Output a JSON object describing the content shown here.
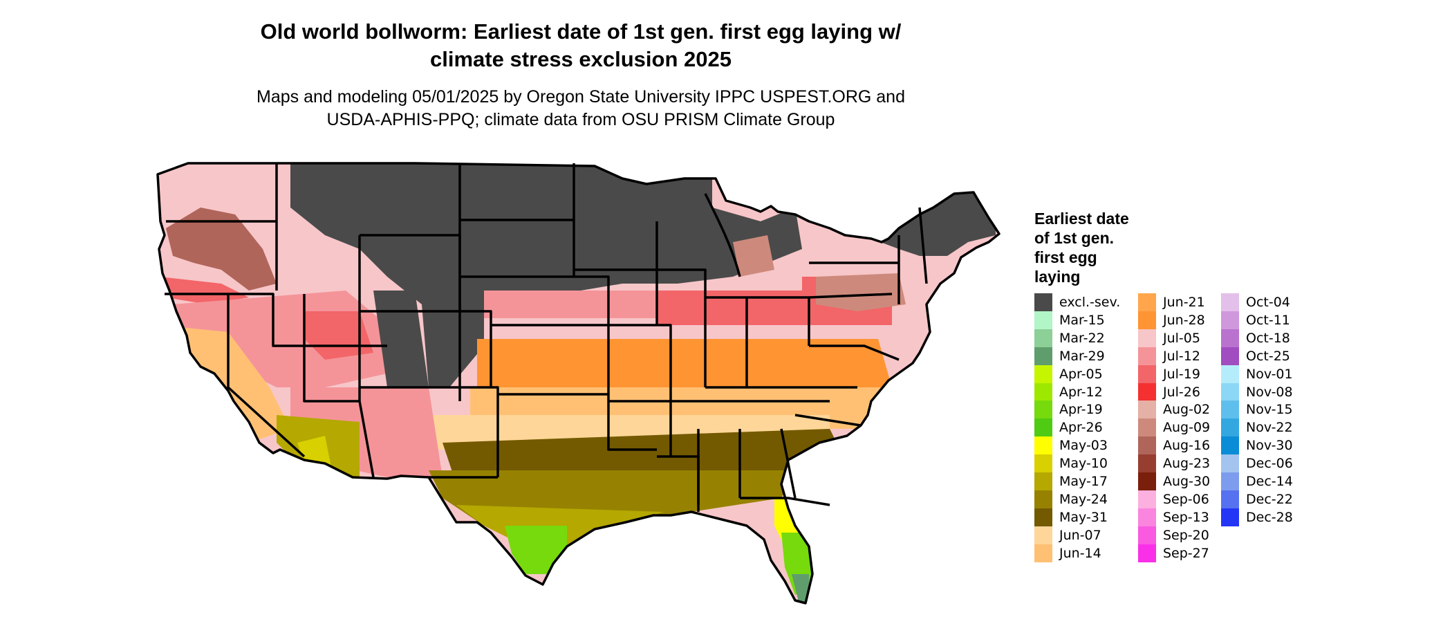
{
  "title_line1": "Old world bollworm: Earliest date of 1st gen. first egg laying w/",
  "title_line2": "climate stress exclusion 2025",
  "subtitle_line1": "Maps and modeling 05/01/2025 by Oregon State University IPPC USPEST.ORG and",
  "subtitle_line2": "USDA-APHIS-PPQ; climate data from OSU PRISM Climate Group",
  "legend": {
    "title_lines": [
      "Earliest date",
      "of 1st gen.",
      "first egg",
      "laying"
    ],
    "columns": [
      [
        {
          "label": "excl.-sev.",
          "color": "#4a4a4a"
        },
        {
          "label": "Mar-15",
          "color": "#b2f5c6"
        },
        {
          "label": "Mar-22",
          "color": "#8ccf97"
        },
        {
          "label": "Mar-29",
          "color": "#5f9e6c"
        },
        {
          "label": "Apr-05",
          "color": "#c6f500"
        },
        {
          "label": "Apr-12",
          "color": "#9ee800"
        },
        {
          "label": "Apr-19",
          "color": "#76da0c"
        },
        {
          "label": "Apr-26",
          "color": "#4fcb14"
        },
        {
          "label": "May-03",
          "color": "#ffff00"
        },
        {
          "label": "May-10",
          "color": "#d8d000"
        },
        {
          "label": "May-17",
          "color": "#b5a800"
        },
        {
          "label": "May-24",
          "color": "#968200"
        },
        {
          "label": "May-31",
          "color": "#735a00"
        },
        {
          "label": "Jun-07",
          "color": "#ffd699"
        },
        {
          "label": "Jun-14",
          "color": "#ffc074"
        }
      ],
      [
        {
          "label": "Jun-21",
          "color": "#ffa64d"
        },
        {
          "label": "Jun-28",
          "color": "#ff9433"
        },
        {
          "label": "Jul-05",
          "color": "#f7c6c9"
        },
        {
          "label": "Jul-12",
          "color": "#f49499"
        },
        {
          "label": "Jul-19",
          "color": "#f26568"
        },
        {
          "label": "Jul-26",
          "color": "#f53030"
        },
        {
          "label": "Aug-02",
          "color": "#e5b0a5"
        },
        {
          "label": "Aug-09",
          "color": "#cd8a7c"
        },
        {
          "label": "Aug-16",
          "color": "#b0655a"
        },
        {
          "label": "Aug-23",
          "color": "#963e30"
        },
        {
          "label": "Aug-30",
          "color": "#7a1f0c"
        },
        {
          "label": "Sep-06",
          "color": "#fbb0e0"
        },
        {
          "label": "Sep-13",
          "color": "#f985de"
        },
        {
          "label": "Sep-20",
          "color": "#f95ae0"
        },
        {
          "label": "Sep-27",
          "color": "#f930e8"
        }
      ],
      [
        {
          "label": "Oct-04",
          "color": "#e3c0ea"
        },
        {
          "label": "Oct-11",
          "color": "#cf98dc"
        },
        {
          "label": "Oct-18",
          "color": "#ba72cf"
        },
        {
          "label": "Oct-25",
          "color": "#a14cc0"
        },
        {
          "label": "Nov-01",
          "color": "#b5ecfb"
        },
        {
          "label": "Nov-08",
          "color": "#8cd7f5"
        },
        {
          "label": "Nov-15",
          "color": "#5fbfec"
        },
        {
          "label": "Nov-22",
          "color": "#33a7e0"
        },
        {
          "label": "Nov-30",
          "color": "#0a8dd6"
        },
        {
          "label": "Dec-06",
          "color": "#a3c4ee"
        },
        {
          "label": "Dec-14",
          "color": "#7d9ced"
        },
        {
          "label": "Dec-22",
          "color": "#5672f0"
        },
        {
          "label": "Dec-28",
          "color": "#2436f5"
        }
      ]
    ]
  },
  "colors": {
    "boundary": "#000000",
    "excluded": "#4a4a4a",
    "water": "#ffffff"
  }
}
